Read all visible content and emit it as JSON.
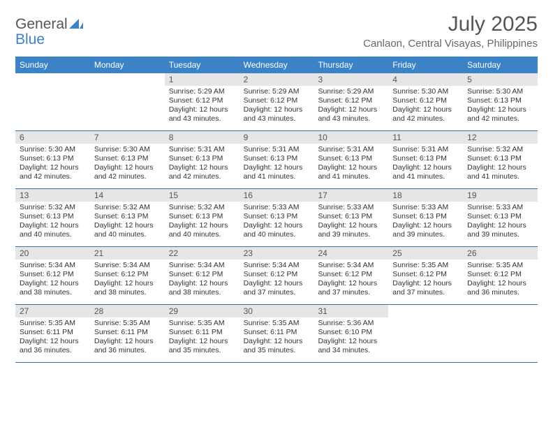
{
  "brand": {
    "word1": "General",
    "word2": "Blue",
    "shape_color": "#3b82c7",
    "text_color": "#555555"
  },
  "title": "July 2025",
  "location": "Canlaon, Central Visayas, Philippines",
  "colors": {
    "header_bg": "#3b82c7",
    "header_text": "#ffffff",
    "daynum_bg": "#e6e6e6",
    "border": "#3b6fa0",
    "body_text": "#333333"
  },
  "day_names": [
    "Sunday",
    "Monday",
    "Tuesday",
    "Wednesday",
    "Thursday",
    "Friday",
    "Saturday"
  ],
  "weeks": [
    [
      null,
      null,
      {
        "n": "1",
        "sr": "5:29 AM",
        "ss": "6:12 PM",
        "dl": "12 hours and 43 minutes."
      },
      {
        "n": "2",
        "sr": "5:29 AM",
        "ss": "6:12 PM",
        "dl": "12 hours and 43 minutes."
      },
      {
        "n": "3",
        "sr": "5:29 AM",
        "ss": "6:12 PM",
        "dl": "12 hours and 43 minutes."
      },
      {
        "n": "4",
        "sr": "5:30 AM",
        "ss": "6:12 PM",
        "dl": "12 hours and 42 minutes."
      },
      {
        "n": "5",
        "sr": "5:30 AM",
        "ss": "6:13 PM",
        "dl": "12 hours and 42 minutes."
      }
    ],
    [
      {
        "n": "6",
        "sr": "5:30 AM",
        "ss": "6:13 PM",
        "dl": "12 hours and 42 minutes."
      },
      {
        "n": "7",
        "sr": "5:30 AM",
        "ss": "6:13 PM",
        "dl": "12 hours and 42 minutes."
      },
      {
        "n": "8",
        "sr": "5:31 AM",
        "ss": "6:13 PM",
        "dl": "12 hours and 42 minutes."
      },
      {
        "n": "9",
        "sr": "5:31 AM",
        "ss": "6:13 PM",
        "dl": "12 hours and 41 minutes."
      },
      {
        "n": "10",
        "sr": "5:31 AM",
        "ss": "6:13 PM",
        "dl": "12 hours and 41 minutes."
      },
      {
        "n": "11",
        "sr": "5:31 AM",
        "ss": "6:13 PM",
        "dl": "12 hours and 41 minutes."
      },
      {
        "n": "12",
        "sr": "5:32 AM",
        "ss": "6:13 PM",
        "dl": "12 hours and 41 minutes."
      }
    ],
    [
      {
        "n": "13",
        "sr": "5:32 AM",
        "ss": "6:13 PM",
        "dl": "12 hours and 40 minutes."
      },
      {
        "n": "14",
        "sr": "5:32 AM",
        "ss": "6:13 PM",
        "dl": "12 hours and 40 minutes."
      },
      {
        "n": "15",
        "sr": "5:32 AM",
        "ss": "6:13 PM",
        "dl": "12 hours and 40 minutes."
      },
      {
        "n": "16",
        "sr": "5:33 AM",
        "ss": "6:13 PM",
        "dl": "12 hours and 40 minutes."
      },
      {
        "n": "17",
        "sr": "5:33 AM",
        "ss": "6:13 PM",
        "dl": "12 hours and 39 minutes."
      },
      {
        "n": "18",
        "sr": "5:33 AM",
        "ss": "6:13 PM",
        "dl": "12 hours and 39 minutes."
      },
      {
        "n": "19",
        "sr": "5:33 AM",
        "ss": "6:13 PM",
        "dl": "12 hours and 39 minutes."
      }
    ],
    [
      {
        "n": "20",
        "sr": "5:34 AM",
        "ss": "6:12 PM",
        "dl": "12 hours and 38 minutes."
      },
      {
        "n": "21",
        "sr": "5:34 AM",
        "ss": "6:12 PM",
        "dl": "12 hours and 38 minutes."
      },
      {
        "n": "22",
        "sr": "5:34 AM",
        "ss": "6:12 PM",
        "dl": "12 hours and 38 minutes."
      },
      {
        "n": "23",
        "sr": "5:34 AM",
        "ss": "6:12 PM",
        "dl": "12 hours and 37 minutes."
      },
      {
        "n": "24",
        "sr": "5:34 AM",
        "ss": "6:12 PM",
        "dl": "12 hours and 37 minutes."
      },
      {
        "n": "25",
        "sr": "5:35 AM",
        "ss": "6:12 PM",
        "dl": "12 hours and 37 minutes."
      },
      {
        "n": "26",
        "sr": "5:35 AM",
        "ss": "6:12 PM",
        "dl": "12 hours and 36 minutes."
      }
    ],
    [
      {
        "n": "27",
        "sr": "5:35 AM",
        "ss": "6:11 PM",
        "dl": "12 hours and 36 minutes."
      },
      {
        "n": "28",
        "sr": "5:35 AM",
        "ss": "6:11 PM",
        "dl": "12 hours and 36 minutes."
      },
      {
        "n": "29",
        "sr": "5:35 AM",
        "ss": "6:11 PM",
        "dl": "12 hours and 35 minutes."
      },
      {
        "n": "30",
        "sr": "5:35 AM",
        "ss": "6:11 PM",
        "dl": "12 hours and 35 minutes."
      },
      {
        "n": "31",
        "sr": "5:36 AM",
        "ss": "6:10 PM",
        "dl": "12 hours and 34 minutes."
      },
      null,
      null
    ]
  ],
  "labels": {
    "sunrise": "Sunrise:",
    "sunset": "Sunset:",
    "daylight": "Daylight:"
  }
}
